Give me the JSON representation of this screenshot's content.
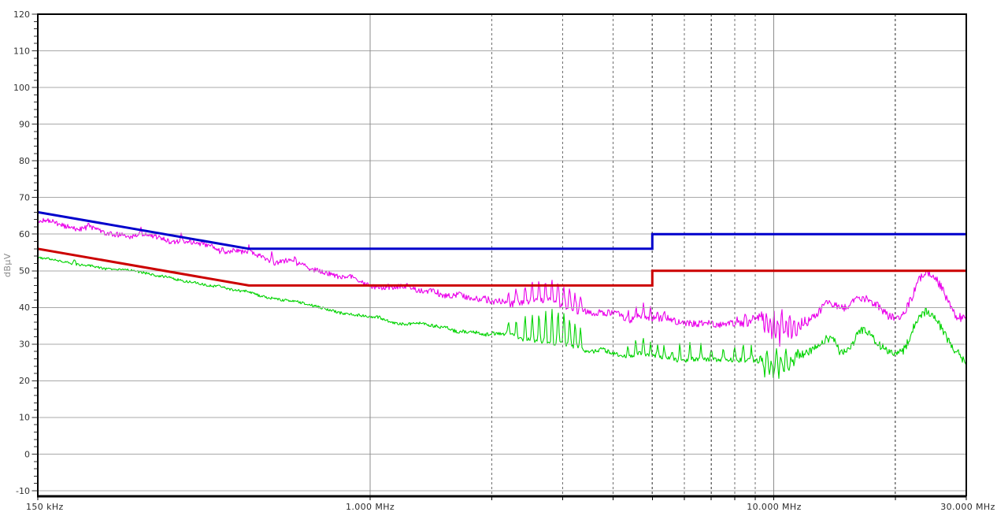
{
  "chart_data": {
    "type": "line",
    "title": "",
    "ylabel": "dBµV",
    "x_axis": {
      "scale": "log",
      "unit": "MHz",
      "min": 0.15,
      "max": 30,
      "tick_labels": [
        {
          "f": 0.15,
          "label": "150 kHz"
        },
        {
          "f": 1,
          "label": "1.000 MHz"
        },
        {
          "f": 10,
          "label": "10.000 MHz"
        },
        {
          "f": 30,
          "label": "30.000 MHz"
        }
      ],
      "grid_solid": [
        1,
        10
      ],
      "grid_dashed": [
        2,
        3,
        4,
        5,
        6,
        7,
        8,
        9,
        20
      ],
      "ticks": [
        0.15,
        1,
        2,
        3,
        4,
        5,
        6,
        7,
        8,
        9,
        10,
        20,
        30
      ]
    },
    "y_axis": {
      "min": -10,
      "max": 120,
      "major_step": 10,
      "minor_step": 2
    },
    "colors": {
      "grid_h": "#a8a8a8",
      "grid_v_solid": "#8c8c8c",
      "grid_v_dashed": "#6e6e6e",
      "axis": "#000000",
      "tick_text": "#333333",
      "unit_text": "#8a8a8a",
      "background": "#ffffff"
    },
    "series": [
      {
        "name": "quasi_peak_limit",
        "kind": "limit",
        "color": "#0000cc",
        "width": 3,
        "points": [
          [
            0.15,
            66
          ],
          [
            0.5,
            56
          ],
          [
            5,
            56
          ],
          [
            5,
            60
          ],
          [
            30,
            60
          ]
        ]
      },
      {
        "name": "average_limit",
        "kind": "limit",
        "color": "#cc0000",
        "width": 3,
        "points": [
          [
            0.15,
            56
          ],
          [
            0.5,
            46
          ],
          [
            5,
            46
          ],
          [
            5,
            50
          ],
          [
            30,
            50
          ]
        ]
      },
      {
        "name": "peak_trace",
        "kind": "trace",
        "color": "#ea00ea",
        "width": 1.1,
        "seed": 7,
        "envelope": [
          [
            0.15,
            63.3
          ],
          [
            0.18,
            62.2
          ],
          [
            0.2,
            61.5
          ],
          [
            0.25,
            60.0
          ],
          [
            0.3,
            58.7
          ],
          [
            0.35,
            57.4
          ],
          [
            0.4,
            56.3
          ],
          [
            0.45,
            55.2
          ],
          [
            0.5,
            54.3
          ],
          [
            0.6,
            52.4
          ],
          [
            0.7,
            50.7
          ],
          [
            0.8,
            49.2
          ],
          [
            0.9,
            47.8
          ],
          [
            1.0,
            46.7
          ],
          [
            1.2,
            45.2
          ],
          [
            1.5,
            43.6
          ],
          [
            1.8,
            42.3
          ],
          [
            2.0,
            41.6
          ],
          [
            2.4,
            41.9
          ],
          [
            2.8,
            42.3
          ],
          [
            3.0,
            41.5
          ],
          [
            3.3,
            39.8
          ],
          [
            3.6,
            38.5
          ],
          [
            4.0,
            37.6
          ],
          [
            4.5,
            37.0
          ],
          [
            5.0,
            36.6
          ],
          [
            6.0,
            36.2
          ],
          [
            7.0,
            35.6
          ],
          [
            8.0,
            35.8
          ],
          [
            9.0,
            36.4
          ],
          [
            9.5,
            37.4
          ],
          [
            10.5,
            37.7
          ],
          [
            11.5,
            36.2
          ],
          [
            12.5,
            38.5
          ],
          [
            13.5,
            41.3
          ],
          [
            14.2,
            40.4
          ],
          [
            14.8,
            39.2
          ],
          [
            15.3,
            39.8
          ],
          [
            16.3,
            43.2
          ],
          [
            17.0,
            42.6
          ],
          [
            18.0,
            40.4
          ],
          [
            19.0,
            38.6
          ],
          [
            20.0,
            37.8
          ],
          [
            21.0,
            38.8
          ],
          [
            22.0,
            43.0
          ],
          [
            23.0,
            48.0
          ],
          [
            23.8,
            49.4
          ],
          [
            24.8,
            48.4
          ],
          [
            25.8,
            45.0
          ],
          [
            26.8,
            41.4
          ],
          [
            27.8,
            39.2
          ],
          [
            28.8,
            38.0
          ],
          [
            30.0,
            37.0
          ]
        ],
        "noise": [
          [
            0.15,
            1.0
          ],
          [
            0.9,
            1.0
          ],
          [
            1.1,
            1.2
          ],
          [
            2.0,
            1.3
          ],
          [
            3.4,
            1.4
          ],
          [
            3.7,
            1.3
          ],
          [
            9.0,
            1.3
          ],
          [
            9.4,
            2.4
          ],
          [
            12.0,
            2.4
          ],
          [
            12.6,
            1.6
          ],
          [
            30,
            1.7
          ]
        ],
        "spikes": [
          [
            0.2,
            1.8
          ],
          [
            0.27,
            2.2
          ],
          [
            0.34,
            2.6
          ],
          [
            0.43,
            2.0
          ],
          [
            0.5,
            2.2
          ],
          [
            0.57,
            2.6
          ],
          [
            0.65,
            1.8
          ],
          [
            2.2,
            3.5
          ],
          [
            2.3,
            4.5
          ],
          [
            2.42,
            5.5
          ],
          [
            2.52,
            5.5
          ],
          [
            2.62,
            6.0
          ],
          [
            2.72,
            6.0
          ],
          [
            2.82,
            6.5
          ],
          [
            2.92,
            6.5
          ],
          [
            3.02,
            6.0
          ],
          [
            3.12,
            5.5
          ],
          [
            3.22,
            4.5
          ],
          [
            3.32,
            4.0
          ],
          [
            4.35,
            2.5
          ],
          [
            4.55,
            3.0
          ],
          [
            4.75,
            3.0
          ],
          [
            4.95,
            3.0
          ],
          [
            5.15,
            2.5
          ],
          [
            5.35,
            2.5
          ],
          [
            8.1,
            2.0
          ],
          [
            8.5,
            2.0
          ],
          [
            8.9,
            2.0
          ],
          [
            9.5,
            -5.0
          ],
          [
            9.7,
            -6.0
          ],
          [
            9.9,
            -6.5
          ],
          [
            10.1,
            -6.0
          ],
          [
            10.35,
            -6.0
          ],
          [
            10.6,
            -5.5
          ],
          [
            10.85,
            -5.0
          ],
          [
            11.1,
            -5.0
          ],
          [
            11.4,
            -4.5
          ],
          [
            9.6,
            2.0
          ],
          [
            10.0,
            2.5
          ],
          [
            10.45,
            2.5
          ],
          [
            10.9,
            2.0
          ]
        ]
      },
      {
        "name": "average_trace",
        "kind": "trace",
        "color": "#00d300",
        "width": 1.1,
        "seed": 13,
        "envelope": [
          [
            0.15,
            53.4
          ],
          [
            0.2,
            51.4
          ],
          [
            0.25,
            49.9
          ],
          [
            0.3,
            48.5
          ],
          [
            0.35,
            47.3
          ],
          [
            0.4,
            46.2
          ],
          [
            0.45,
            45.1
          ],
          [
            0.5,
            44.1
          ],
          [
            0.6,
            42.2
          ],
          [
            0.7,
            40.6
          ],
          [
            0.8,
            39.2
          ],
          [
            0.9,
            38.0
          ],
          [
            1.0,
            37.2
          ],
          [
            1.2,
            35.9
          ],
          [
            1.5,
            34.5
          ],
          [
            2.0,
            32.7
          ],
          [
            2.5,
            31.4
          ],
          [
            3.0,
            30.0
          ],
          [
            3.5,
            28.5
          ],
          [
            4.0,
            27.6
          ],
          [
            4.5,
            27.0
          ],
          [
            5.0,
            26.6
          ],
          [
            6.0,
            26.1
          ],
          [
            7.0,
            25.5
          ],
          [
            8.0,
            25.3
          ],
          [
            9.0,
            25.7
          ],
          [
            10.0,
            25.9
          ],
          [
            11.0,
            26.3
          ],
          [
            11.8,
            26.6
          ],
          [
            12.6,
            29.3
          ],
          [
            13.5,
            32.6
          ],
          [
            14.1,
            31.8
          ],
          [
            14.6,
            28.4
          ],
          [
            15.2,
            29.6
          ],
          [
            16.3,
            33.4
          ],
          [
            17.0,
            32.8
          ],
          [
            18.0,
            30.6
          ],
          [
            19.0,
            28.8
          ],
          [
            20.0,
            28.1
          ],
          [
            21.0,
            29.2
          ],
          [
            22.0,
            33.0
          ],
          [
            23.0,
            37.0
          ],
          [
            23.8,
            38.2
          ],
          [
            24.8,
            37.4
          ],
          [
            25.8,
            34.6
          ],
          [
            26.8,
            31.2
          ],
          [
            27.8,
            29.0
          ],
          [
            28.8,
            27.4
          ],
          [
            30.0,
            25.4
          ]
        ],
        "noise": [
          [
            0.15,
            0.45
          ],
          [
            0.9,
            0.55
          ],
          [
            1.1,
            0.65
          ],
          [
            2.0,
            0.8
          ],
          [
            3.5,
            0.85
          ],
          [
            9.0,
            0.95
          ],
          [
            9.4,
            1.9
          ],
          [
            12.0,
            1.9
          ],
          [
            12.6,
            1.5
          ],
          [
            30,
            1.7
          ]
        ],
        "spikes": [
          [
            0.185,
            1.5
          ],
          [
            2.2,
            4.0
          ],
          [
            2.3,
            5.0
          ],
          [
            2.42,
            6.5
          ],
          [
            2.52,
            7.5
          ],
          [
            2.62,
            8.5
          ],
          [
            2.72,
            9.0
          ],
          [
            2.82,
            9.5
          ],
          [
            2.92,
            9.5
          ],
          [
            3.02,
            9.0
          ],
          [
            3.12,
            8.5
          ],
          [
            3.22,
            7.5
          ],
          [
            3.32,
            6.5
          ],
          [
            4.35,
            3.5
          ],
          [
            4.55,
            4.0
          ],
          [
            4.75,
            4.5
          ],
          [
            4.95,
            4.0
          ],
          [
            5.15,
            3.5
          ],
          [
            5.35,
            3.5
          ],
          [
            5.6,
            3.0
          ],
          [
            5.85,
            4.5
          ],
          [
            6.2,
            5.0
          ],
          [
            6.6,
            4.0
          ],
          [
            7.0,
            3.0
          ],
          [
            7.5,
            3.0
          ],
          [
            8.0,
            4.0
          ],
          [
            8.4,
            4.0
          ],
          [
            8.8,
            3.5
          ],
          [
            9.5,
            -3.5
          ],
          [
            9.75,
            -4.0
          ],
          [
            10.0,
            -4.5
          ],
          [
            10.3,
            -4.5
          ],
          [
            10.6,
            -4.0
          ],
          [
            10.9,
            -4.0
          ],
          [
            11.2,
            -3.5
          ],
          [
            9.6,
            2.5
          ],
          [
            10.15,
            3.0
          ],
          [
            10.7,
            2.5
          ],
          [
            14.55,
            -1.5
          ]
        ]
      }
    ]
  }
}
